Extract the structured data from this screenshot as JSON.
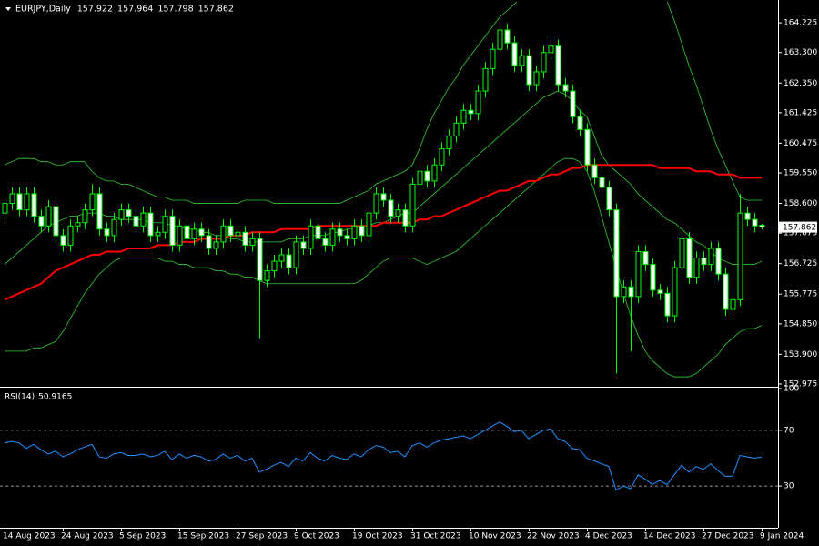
{
  "chart_data": [
    {
      "type": "candlestick",
      "title": "EURJPY,Daily",
      "title_values": [
        157.922,
        157.964,
        157.798,
        157.862
      ],
      "color": "#00ff00",
      "up_fill": "#000000",
      "down_fill": "#ffffff",
      "categories": [
        "14 Aug 2023",
        null,
        null,
        null,
        null,
        null,
        null,
        null,
        "24 Aug 2023",
        null,
        null,
        null,
        null,
        null,
        null,
        null,
        "5 Sep 2023",
        null,
        null,
        null,
        null,
        null,
        null,
        null,
        "15 Sep 2023",
        null,
        null,
        null,
        null,
        null,
        null,
        null,
        "27 Sep 2023",
        null,
        null,
        null,
        null,
        null,
        null,
        null,
        "9 Oct 2023",
        null,
        null,
        null,
        null,
        null,
        null,
        null,
        "19 Oct 2023",
        null,
        null,
        null,
        null,
        null,
        null,
        null,
        "31 Oct 2023",
        null,
        null,
        null,
        null,
        null,
        null,
        null,
        "10 Nov 2023",
        null,
        null,
        null,
        null,
        null,
        null,
        null,
        "22 Nov 2023",
        null,
        null,
        null,
        null,
        null,
        null,
        null,
        "4 Dec 2023",
        null,
        null,
        null,
        null,
        null,
        null,
        null,
        "14 Dec 2023",
        null,
        null,
        null,
        null,
        null,
        null,
        null,
        "27 Dec 2023",
        null,
        null,
        null,
        null,
        null,
        null,
        null,
        "9 Jan 2024"
      ],
      "open": [
        158.3,
        158.6,
        158.9,
        158.4,
        158.9,
        158.2,
        157.9,
        158.5,
        157.6,
        157.3,
        157.9,
        158.0,
        158.4,
        158.9,
        157.8,
        157.6,
        158.1,
        158.4,
        158.2,
        157.9,
        158.3,
        157.6,
        157.7,
        158.2,
        157.3,
        157.9,
        157.5,
        157.8,
        157.6,
        157.2,
        157.4,
        157.9,
        157.6,
        157.7,
        157.3,
        157.5,
        156.2,
        156.5,
        156.8,
        157.0,
        156.6,
        157.4,
        157.2,
        157.9,
        157.5,
        157.3,
        157.8,
        157.6,
        157.5,
        157.9,
        157.6,
        158.3,
        158.9,
        158.7,
        158.2,
        158.4,
        157.9,
        159.2,
        159.6,
        159.3,
        159.8,
        160.3,
        160.7,
        161.1,
        161.5,
        161.4,
        162.1,
        162.8,
        163.4,
        164.0,
        163.6,
        162.9,
        163.2,
        162.3,
        162.7,
        163.3,
        163.5,
        162.3,
        162.1,
        161.3,
        160.9,
        159.8,
        159.4,
        159.1,
        158.4,
        155.7,
        156.0,
        155.7,
        157.1,
        156.7,
        155.9,
        155.8,
        155.1,
        156.6,
        157.5,
        156.3,
        156.9,
        156.7,
        157.2,
        156.4,
        155.3,
        155.6,
        158.3,
        158.1,
        157.922
      ],
      "high": [
        158.8,
        159.1,
        159.1,
        159.1,
        159.1,
        158.4,
        158.7,
        158.7,
        157.8,
        158.1,
        158.2,
        158.6,
        159.2,
        159.1,
        158.0,
        158.3,
        158.6,
        158.6,
        158.4,
        158.5,
        158.5,
        157.9,
        158.4,
        158.4,
        158.1,
        158.1,
        158.0,
        158.0,
        157.8,
        157.6,
        158.1,
        158.1,
        157.9,
        157.9,
        157.7,
        157.7,
        156.7,
        157.0,
        157.2,
        157.2,
        157.6,
        157.6,
        158.1,
        158.1,
        157.7,
        158.0,
        158.0,
        157.8,
        158.1,
        158.1,
        158.5,
        159.1,
        159.1,
        158.9,
        158.6,
        158.6,
        159.4,
        159.8,
        159.8,
        160.0,
        160.5,
        160.9,
        161.3,
        161.7,
        161.7,
        162.3,
        163.0,
        163.6,
        164.2,
        164.2,
        163.8,
        163.4,
        163.4,
        162.9,
        163.5,
        163.7,
        163.7,
        162.5,
        162.3,
        161.5,
        161.1,
        160.0,
        159.6,
        159.3,
        158.6,
        156.2,
        156.2,
        157.3,
        157.3,
        156.9,
        156.1,
        156.0,
        156.8,
        157.7,
        157.7,
        157.1,
        157.1,
        157.4,
        157.4,
        156.6,
        155.8,
        158.9,
        158.5,
        158.3,
        157.964
      ],
      "low": [
        158.1,
        158.4,
        158.2,
        158.2,
        158.0,
        157.7,
        157.7,
        157.4,
        157.1,
        157.1,
        157.7,
        157.8,
        158.2,
        157.6,
        157.4,
        157.4,
        157.9,
        158.0,
        157.7,
        157.7,
        157.4,
        157.4,
        157.5,
        157.1,
        157.1,
        157.3,
        157.3,
        157.4,
        157.0,
        157.0,
        157.2,
        157.4,
        157.4,
        157.1,
        157.1,
        154.4,
        156.0,
        156.3,
        156.6,
        156.4,
        156.4,
        157.0,
        157.0,
        157.3,
        157.1,
        157.1,
        157.4,
        157.3,
        157.3,
        157.4,
        157.4,
        158.1,
        158.5,
        158.0,
        158.0,
        157.7,
        157.7,
        159.0,
        159.1,
        159.1,
        159.6,
        160.1,
        160.5,
        160.9,
        161.2,
        161.2,
        161.9,
        162.6,
        163.2,
        163.4,
        162.7,
        162.7,
        162.1,
        162.1,
        162.5,
        163.1,
        162.1,
        161.9,
        161.1,
        160.7,
        159.6,
        159.2,
        158.9,
        158.2,
        153.3,
        155.5,
        154.0,
        155.5,
        156.5,
        155.7,
        155.6,
        154.9,
        154.9,
        156.4,
        156.1,
        156.1,
        156.5,
        156.5,
        156.2,
        155.1,
        155.1,
        155.4,
        157.9,
        157.7,
        157.798
      ],
      "close": [
        158.6,
        158.9,
        158.4,
        158.9,
        158.2,
        157.9,
        158.5,
        157.6,
        157.3,
        157.9,
        158.0,
        158.4,
        158.9,
        157.8,
        157.6,
        158.1,
        158.4,
        158.2,
        157.9,
        158.3,
        157.6,
        157.7,
        158.2,
        157.3,
        157.9,
        157.5,
        157.8,
        157.6,
        157.2,
        157.4,
        157.9,
        157.6,
        157.7,
        157.3,
        157.5,
        156.2,
        156.5,
        156.8,
        157.0,
        156.6,
        157.4,
        157.2,
        157.9,
        157.5,
        157.3,
        157.8,
        157.6,
        157.5,
        157.9,
        157.6,
        158.3,
        158.9,
        158.7,
        158.2,
        158.4,
        157.9,
        159.2,
        159.6,
        159.3,
        159.8,
        160.3,
        160.7,
        161.1,
        161.5,
        161.4,
        162.1,
        162.8,
        163.4,
        164.0,
        163.6,
        162.9,
        163.2,
        162.3,
        162.7,
        163.3,
        163.5,
        162.3,
        162.1,
        161.3,
        160.9,
        159.8,
        159.4,
        159.1,
        158.4,
        155.7,
        156.0,
        155.7,
        157.1,
        156.7,
        155.9,
        155.8,
        155.1,
        156.6,
        157.5,
        156.3,
        156.9,
        156.7,
        157.2,
        156.4,
        155.3,
        155.6,
        158.3,
        158.1,
        157.9,
        157.862
      ],
      "overlays": [
        {
          "color": "#32cd32",
          "width": 0.8,
          "values": [
            159.8,
            159.9,
            160.0,
            160.0,
            160.0,
            159.9,
            159.9,
            159.8,
            159.8,
            159.9,
            159.9,
            159.9,
            159.6,
            159.4,
            159.3,
            159.3,
            159.2,
            159.2,
            159.1,
            159.0,
            158.9,
            158.8,
            158.8,
            158.7,
            158.7,
            158.7,
            158.6,
            158.6,
            158.6,
            158.6,
            158.6,
            158.6,
            158.6,
            158.7,
            158.7,
            158.7,
            158.7,
            158.6,
            158.6,
            158.6,
            158.6,
            158.6,
            158.6,
            158.6,
            158.6,
            158.6,
            158.6,
            158.7,
            158.8,
            158.9,
            159.0,
            159.2,
            159.3,
            159.4,
            159.5,
            159.6,
            159.8,
            160.3,
            160.9,
            161.4,
            161.8,
            162.2,
            162.5,
            162.9,
            163.2,
            163.5,
            163.8,
            164.1,
            164.4,
            164.6,
            164.8,
            165.0,
            165.2,
            165.4,
            165.6,
            165.8,
            165.9,
            166.0,
            166.1,
            166.2,
            166.2,
            166.2,
            166.2,
            166.2,
            166.2,
            166.1,
            166.0,
            165.8,
            165.6,
            165.4,
            165.2,
            164.9,
            164.3,
            163.6,
            162.9,
            162.3,
            161.6,
            160.9,
            160.3,
            159.8,
            159.3,
            158.8,
            158.7,
            158.7,
            158.7
          ]
        },
        {
          "color": "#32cd32",
          "width": 0.8,
          "values": [
            156.7,
            156.9,
            157.1,
            157.3,
            157.5,
            157.7,
            157.9,
            158.0,
            158.1,
            158.2,
            158.2,
            158.3,
            158.3,
            158.3,
            158.2,
            158.2,
            158.1,
            158.1,
            158.1,
            158.1,
            158.0,
            158.0,
            158.0,
            157.9,
            157.9,
            157.8,
            157.8,
            157.7,
            157.7,
            157.6,
            157.6,
            157.5,
            157.5,
            157.4,
            157.4,
            157.4,
            157.4,
            157.4,
            157.4,
            157.5,
            157.5,
            157.5,
            157.6,
            157.6,
            157.6,
            157.7,
            157.7,
            157.8,
            157.8,
            157.9,
            157.9,
            158.0,
            158.0,
            158.1,
            158.2,
            158.3,
            158.3,
            158.5,
            158.7,
            158.9,
            159.1,
            159.3,
            159.5,
            159.7,
            159.9,
            160.1,
            160.3,
            160.5,
            160.7,
            160.9,
            161.1,
            161.3,
            161.5,
            161.7,
            161.9,
            162.0,
            162.1,
            162.0,
            161.8,
            161.5,
            161.3,
            160.7,
            160.1,
            159.8,
            159.6,
            159.4,
            159.2,
            158.9,
            158.7,
            158.5,
            158.3,
            158.1,
            158.0,
            157.8,
            157.6,
            157.4,
            157.3,
            157.1,
            156.9,
            156.8,
            156.7,
            156.7,
            156.7,
            156.7,
            156.8
          ]
        },
        {
          "color": "#32cd32",
          "width": 0.8,
          "values": [
            154.0,
            154.0,
            154.0,
            154.0,
            154.1,
            154.1,
            154.2,
            154.3,
            154.6,
            155.0,
            155.4,
            155.8,
            156.1,
            156.4,
            156.6,
            156.8,
            156.9,
            156.9,
            156.9,
            156.9,
            156.9,
            156.9,
            156.8,
            156.8,
            156.7,
            156.7,
            156.6,
            156.6,
            156.6,
            156.5,
            156.5,
            156.4,
            156.4,
            156.3,
            156.3,
            156.2,
            156.1,
            156.1,
            156.1,
            156.1,
            156.1,
            156.1,
            156.1,
            156.1,
            156.1,
            156.1,
            156.1,
            156.1,
            156.1,
            156.2,
            156.4,
            156.6,
            156.8,
            156.9,
            156.9,
            156.9,
            156.9,
            156.8,
            156.7,
            156.8,
            156.9,
            157.0,
            157.1,
            157.3,
            157.5,
            157.7,
            157.9,
            158.1,
            158.3,
            158.5,
            158.7,
            158.9,
            159.1,
            159.3,
            159.5,
            159.7,
            159.9,
            160.0,
            160.0,
            159.9,
            159.6,
            159.0,
            158.2,
            157.4,
            156.6,
            155.8,
            155.1,
            154.5,
            154.0,
            153.7,
            153.5,
            153.3,
            153.2,
            153.2,
            153.2,
            153.3,
            153.5,
            153.7,
            153.9,
            154.2,
            154.4,
            154.6,
            154.7,
            154.7,
            154.8
          ]
        },
        {
          "color": "#ff0000",
          "width": 2,
          "values": [
            155.6,
            155.7,
            155.8,
            155.9,
            156.0,
            156.1,
            156.3,
            156.5,
            156.6,
            156.7,
            156.8,
            156.9,
            157.0,
            157.0,
            157.1,
            157.1,
            157.1,
            157.2,
            157.2,
            157.2,
            157.2,
            157.3,
            157.3,
            157.3,
            157.4,
            157.4,
            157.4,
            157.5,
            157.5,
            157.5,
            157.5,
            157.6,
            157.6,
            157.6,
            157.7,
            157.7,
            157.7,
            157.7,
            157.8,
            157.8,
            157.8,
            157.8,
            157.8,
            157.9,
            157.9,
            157.9,
            157.9,
            157.9,
            157.9,
            157.9,
            157.9,
            157.9,
            158.0,
            158.0,
            158.0,
            158.0,
            158.0,
            158.1,
            158.1,
            158.2,
            158.2,
            158.3,
            158.4,
            158.5,
            158.6,
            158.7,
            158.8,
            158.9,
            159.0,
            159.0,
            159.1,
            159.2,
            159.3,
            159.3,
            159.4,
            159.5,
            159.5,
            159.6,
            159.7,
            159.7,
            159.8,
            159.8,
            159.8,
            159.8,
            159.8,
            159.8,
            159.8,
            159.8,
            159.8,
            159.8,
            159.7,
            159.7,
            159.7,
            159.7,
            159.7,
            159.6,
            159.6,
            159.6,
            159.5,
            159.5,
            159.5,
            159.4,
            159.4,
            159.4,
            159.4
          ]
        }
      ],
      "current_price": 157.862,
      "ylim": [
        152.89,
        164.88
      ],
      "yticks": [
        164.225,
        {
          "value": 163.3,
          "label": "163.300"
        },
        {
          "value": 162.35,
          "label": "162.350"
        },
        161.425,
        160.475,
        {
          "value": 159.55,
          "label": "159.550"
        },
        {
          "value": 158.6,
          "label": "158.600"
        },
        157.675,
        156.725,
        155.775,
        {
          "value": 154.85,
          "label": "154.850"
        },
        {
          "value": 153.9,
          "label": "153.900"
        },
        152.975
      ]
    },
    {
      "type": "line",
      "title": "RSI(14)",
      "last_value": 50.9165,
      "color": "#1e90ff",
      "values": [
        61,
        62,
        61,
        57,
        60,
        56,
        53,
        55,
        51,
        53,
        56,
        58,
        60,
        51,
        50,
        53,
        54,
        52,
        52,
        53,
        51,
        52,
        55,
        49,
        53,
        50,
        52,
        51,
        48,
        49,
        53,
        50,
        52,
        48,
        50,
        40,
        42,
        45,
        47,
        44,
        50,
        48,
        54,
        50,
        48,
        52,
        50,
        49,
        53,
        51,
        56,
        59,
        58,
        54,
        55,
        51,
        59,
        61,
        58,
        61,
        63,
        64,
        65,
        66,
        64,
        67,
        70,
        73,
        76,
        73,
        69,
        70,
        64,
        67,
        70,
        71,
        64,
        62,
        57,
        56,
        50,
        48,
        46,
        44,
        27,
        30,
        28,
        38,
        35,
        31,
        34,
        31,
        38,
        45,
        40,
        44,
        42,
        46,
        41,
        37,
        37,
        52,
        51,
        50,
        50.9165
      ],
      "ylim": [
        0,
        100
      ],
      "yticks": [
        100,
        70,
        30
      ],
      "levels": [
        70,
        30
      ]
    }
  ]
}
